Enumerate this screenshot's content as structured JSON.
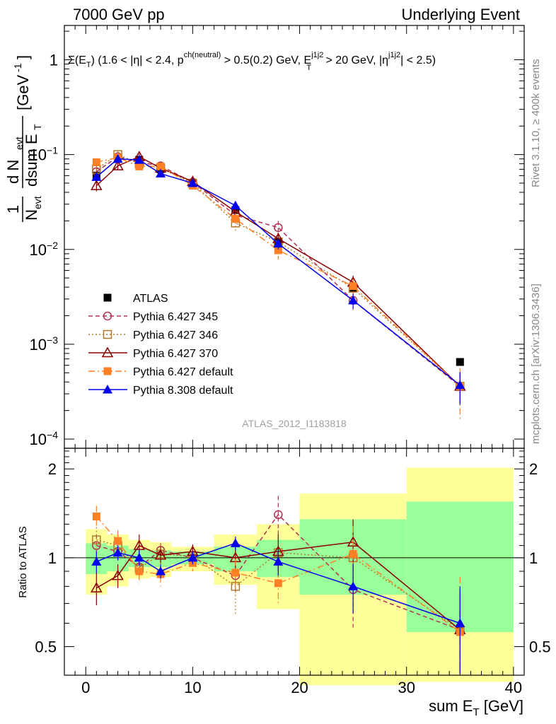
{
  "header": {
    "left": "7000 GeV pp",
    "right": "Underlying Event"
  },
  "side_labels": {
    "rivet": "Rivet 3.1.10, ≥ 400k events",
    "mcplots": "mcplots.cern.ch [arXiv:1306.3436]"
  },
  "colors": {
    "atlas": "#000000",
    "p345": "#b03050",
    "p346": "#b07a2a",
    "p370": "#8b0000",
    "p6def": "#ff7f24",
    "p8def": "#0000ee",
    "band_inner": "#99ff99",
    "band_outer": "#ffff99"
  },
  "chart_data": [
    {
      "type": "scatter",
      "panel": "main",
      "yscale": "log",
      "title": "Σ(E_T) (1.6 < |η| < 2.4, p^{ch(neutral)} > 0.5(0.2) GeV, E_T^{j1j2} > 20 GeV, |η^{j1j2}| < 2.5)",
      "title_parts": {
        "sigma": "Σ(E",
        "t": "T",
        "eta": ") (1.6 < |η| < 2.4, p",
        "pt_sup": "ch(neutral)",
        "cut": " > 0.5(0.2) GeV, E",
        "et_sup": "j1j2",
        "et_sub": "T",
        "jetcut": " > 20 GeV, |η",
        "eta_sup": "j1j2",
        "end": "| < 2.5)"
      },
      "ylabel": "1/N_evt dN_evt/dsum E_T [GeV^-1]",
      "ylabel_parts": {
        "one": "1",
        "n": "N",
        "evt": "evt",
        "d": "d N",
        "dsum": "dsum E",
        "t": "T",
        "unit": "[GeV",
        "inv": "-1",
        "close": "]"
      },
      "xlim": [
        -2,
        41
      ],
      "ylim": [
        8e-05,
        2.3
      ],
      "yticks": [
        {
          "value": 1,
          "label": "1"
        },
        {
          "value": 0.1,
          "base": "10",
          "exp": "−1"
        },
        {
          "value": 0.01,
          "base": "10",
          "exp": "−2"
        },
        {
          "value": 0.001,
          "base": "10",
          "exp": "−3"
        },
        {
          "value": 0.0001,
          "base": "10",
          "exp": "−4"
        }
      ],
      "watermark": "ATLAS_2012_I1183818",
      "x": [
        1,
        3,
        5,
        7,
        10,
        14,
        18,
        25,
        35
      ],
      "series": [
        {
          "key": "atlas",
          "name": "ATLAS",
          "marker": "square-filled",
          "line": "none",
          "values": [
            0.06,
            0.09,
            0.088,
            0.07,
            0.05,
            0.026,
            0.012,
            0.0039,
            0.00065
          ]
        },
        {
          "key": "p345",
          "name": "Pythia 6.427 345",
          "marker": "circle-open",
          "line": "dashed",
          "values": [
            0.066,
            0.095,
            0.083,
            0.076,
            0.051,
            0.023,
            0.017,
            0.0029,
            0.00036
          ],
          "err": [
            0.006,
            0.007,
            0.006,
            0.005,
            0.004,
            0.004,
            0.003,
            0.0006,
            0.00012
          ]
        },
        {
          "key": "p346",
          "name": "Pythia 6.427 346",
          "marker": "square-open",
          "line": "dotted",
          "values": [
            0.07,
            0.1,
            0.08,
            0.072,
            0.05,
            0.019,
            0.012,
            0.0039,
            0.00036
          ],
          "err": [
            0.006,
            0.008,
            0.006,
            0.005,
            0.004,
            0.004,
            0.003,
            0.0007,
            0.00012
          ]
        },
        {
          "key": "p370",
          "name": "Pythia 6.427 370",
          "marker": "triangle-open",
          "line": "solid",
          "values": [
            0.047,
            0.076,
            0.095,
            0.072,
            0.052,
            0.025,
            0.013,
            0.0045,
            0.00036
          ],
          "err": [
            0.006,
            0.007,
            0.007,
            0.005,
            0.004,
            0.003,
            0.002,
            0.0008,
            0.00012
          ]
        },
        {
          "key": "p6def",
          "name": "Pythia 6.427 default",
          "marker": "square-filled",
          "line": "dashdot",
          "values": [
            0.083,
            0.093,
            0.075,
            0.075,
            0.047,
            0.021,
            0.0098,
            0.0041,
            0.00036
          ],
          "err": [
            0.007,
            0.007,
            0.006,
            0.006,
            0.004,
            0.003,
            0.002,
            0.0008,
            0.0002
          ]
        },
        {
          "key": "p8def",
          "name": "Pythia 8.308 default",
          "marker": "triangle-filled",
          "line": "solid",
          "values": [
            0.058,
            0.09,
            0.088,
            0.063,
            0.05,
            0.029,
            0.0115,
            0.0029,
            0.00037
          ],
          "err": [
            0.005,
            0.006,
            0.006,
            0.004,
            0.004,
            0.002,
            0.0015,
            0.0005,
            0.00014
          ]
        }
      ]
    },
    {
      "type": "scatter",
      "panel": "ratio",
      "yscale": "log",
      "ylabel": "Ratio to ATLAS",
      "xlabel": "sum E_T [GeV]",
      "xlabel_parts": {
        "main": "sum E",
        "sub": "T",
        "unit": " [GeV]"
      },
      "xlim": [
        -2,
        41
      ],
      "ylim": [
        0.4,
        2.35
      ],
      "xticks": [
        0,
        10,
        20,
        30,
        40
      ],
      "yticks": [
        {
          "value": 0.5,
          "label": "0.5"
        },
        {
          "value": 1,
          "label": "1"
        },
        {
          "value": 2,
          "label": "2"
        }
      ],
      "reference": 1,
      "bins": [
        {
          "lo": 0,
          "hi": 2,
          "inner": [
            0.88,
            1.12
          ],
          "outer": [
            0.75,
            1.25
          ]
        },
        {
          "lo": 2,
          "hi": 4,
          "inner": [
            0.9,
            1.1
          ],
          "outer": [
            0.8,
            1.2
          ]
        },
        {
          "lo": 4,
          "hi": 6,
          "inner": [
            0.93,
            1.07
          ],
          "outer": [
            0.85,
            1.15
          ]
        },
        {
          "lo": 6,
          "hi": 8,
          "inner": [
            0.93,
            1.06
          ],
          "outer": [
            0.86,
            1.13
          ]
        },
        {
          "lo": 8,
          "hi": 12,
          "inner": [
            0.95,
            1.05
          ],
          "outer": [
            0.9,
            1.09
          ]
        },
        {
          "lo": 12,
          "hi": 16,
          "inner": [
            0.9,
            1.09
          ],
          "outer": [
            0.81,
            1.2
          ]
        },
        {
          "lo": 16,
          "hi": 20,
          "inner": [
            0.86,
            1.15
          ],
          "outer": [
            0.67,
            1.3
          ]
        },
        {
          "lo": 20,
          "hi": 30,
          "inner": [
            0.75,
            1.35
          ],
          "outer": [
            0.37,
            1.65
          ]
        },
        {
          "lo": 30,
          "hi": 40,
          "inner": [
            0.56,
            1.55
          ],
          "outer": [
            0.38,
            2.02
          ]
        }
      ],
      "series": [
        {
          "key": "p345",
          "marker": "circle-open",
          "line": "dashed",
          "values": [
            1.1,
            1.05,
            0.93,
            1.06,
            1.0,
            0.87,
            1.4,
            0.78,
            0.57
          ],
          "err": [
            0.1,
            0.08,
            0.07,
            0.06,
            0.06,
            0.12,
            0.22,
            0.2,
            0.2
          ]
        },
        {
          "key": "p346",
          "marker": "square-open",
          "line": "dotted",
          "values": [
            1.15,
            1.1,
            0.92,
            1.03,
            1.01,
            0.8,
            1.04,
            1.0,
            0.57
          ],
          "err": [
            0.12,
            0.09,
            0.08,
            0.07,
            0.06,
            0.16,
            0.2,
            0.2,
            0.2
          ]
        },
        {
          "key": "p370",
          "marker": "triangle-open",
          "line": "solid",
          "values": [
            0.79,
            0.87,
            1.1,
            1.02,
            1.05,
            1.0,
            1.05,
            1.13,
            0.57
          ],
          "err": [
            0.1,
            0.08,
            0.1,
            0.07,
            0.06,
            0.1,
            0.15,
            0.22,
            0.2
          ]
        },
        {
          "key": "p6def",
          "marker": "square-filled",
          "line": "dashdot",
          "values": [
            1.38,
            1.14,
            0.9,
            0.88,
            0.96,
            0.89,
            0.82,
            1.03,
            0.56
          ],
          "err": [
            0.12,
            0.1,
            0.08,
            0.08,
            0.06,
            0.1,
            0.12,
            0.25,
            0.3
          ]
        },
        {
          "key": "p8def",
          "marker": "triangle-filled",
          "line": "solid",
          "values": [
            0.97,
            1.04,
            1.0,
            0.9,
            1.0,
            1.12,
            0.97,
            0.8,
            0.6
          ],
          "err": [
            0.08,
            0.06,
            0.06,
            0.05,
            0.05,
            0.06,
            0.1,
            0.15,
            0.2
          ]
        }
      ]
    }
  ]
}
